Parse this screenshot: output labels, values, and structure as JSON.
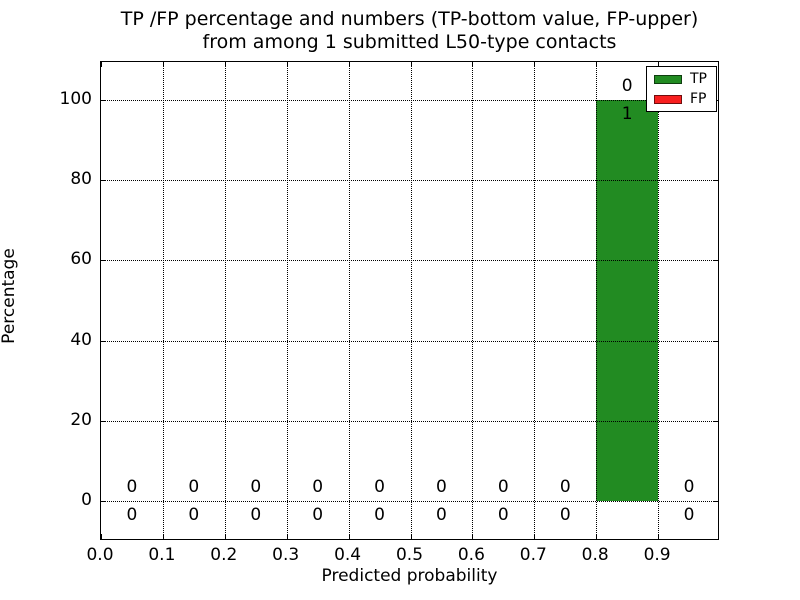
{
  "figure": {
    "title_line1": "TP /FP percentage and numbers (TP-bottom value, FP-upper)",
    "title_line2": "from among 1 submitted L50-type contacts"
  },
  "chart_data": {
    "type": "bar",
    "title": "TP /FP percentage and numbers (TP-bottom value, FP-upper) from among 1 submitted L50-type contacts",
    "xlabel": "Predicted probability",
    "ylabel": "Percentage",
    "xlim": [
      0.0,
      1.0
    ],
    "ylim": [
      -10,
      109.5
    ],
    "x_tick_values": [
      0.0,
      0.1,
      0.2,
      0.3,
      0.4,
      0.5,
      0.6,
      0.7,
      0.8,
      0.9
    ],
    "x_tick_labels": [
      "0.0",
      "0.1",
      "0.2",
      "0.3",
      "0.4",
      "0.5",
      "0.6",
      "0.7",
      "0.8",
      "0.9"
    ],
    "y_tick_values": [
      0,
      20,
      40,
      60,
      80,
      100
    ],
    "y_tick_labels": [
      "0",
      "20",
      "40",
      "60",
      "80",
      "100"
    ],
    "grid": true,
    "grid_style": "dotted",
    "legend_position": "upper right",
    "bin_width": 0.1,
    "bin_centers": [
      0.05,
      0.15,
      0.25,
      0.35,
      0.45,
      0.55,
      0.65,
      0.75,
      0.85,
      0.95
    ],
    "series": [
      {
        "name": "TP",
        "color": "#228b22",
        "label_side": "below-bar-top",
        "percent": [
          0,
          0,
          0,
          0,
          0,
          0,
          0,
          0,
          100,
          0
        ],
        "counts": [
          0,
          0,
          0,
          0,
          0,
          0,
          0,
          0,
          1,
          0
        ]
      },
      {
        "name": "FP",
        "color": "#f81f1f",
        "label_side": "above-bar-top",
        "percent": [
          0,
          0,
          0,
          0,
          0,
          0,
          0,
          0,
          0,
          0
        ],
        "counts": [
          0,
          0,
          0,
          0,
          0,
          0,
          0,
          0,
          0,
          0
        ]
      }
    ]
  }
}
